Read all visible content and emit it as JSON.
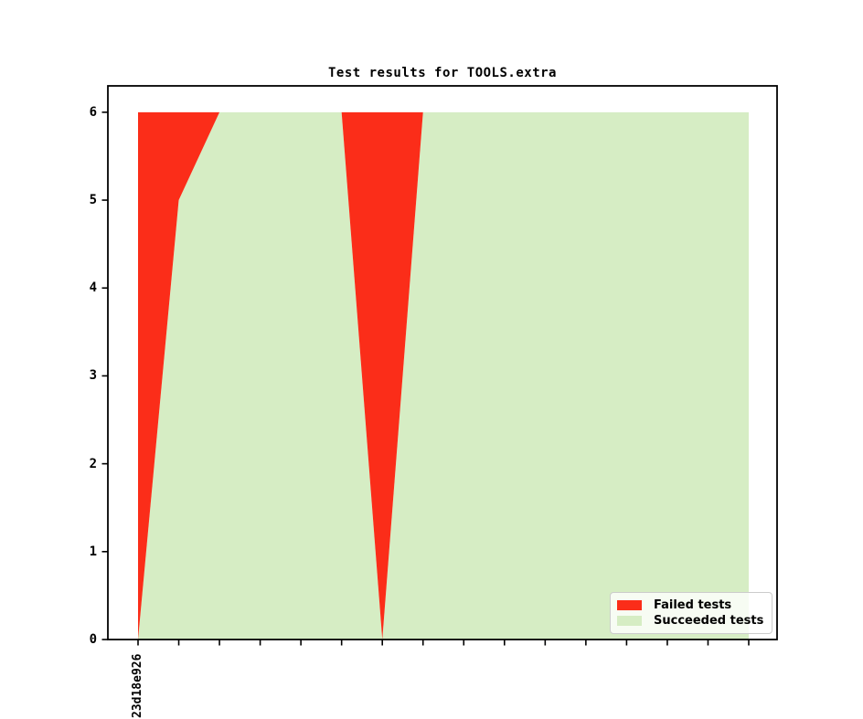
{
  "chart_data": {
    "type": "area",
    "stacked": true,
    "title": "Test results for TOOLS.extra",
    "xlabel": "",
    "ylabel": "",
    "n_points": 16,
    "x_tick_labels": [
      "23d18e926",
      "",
      "",
      "",
      "",
      "",
      "",
      "",
      "",
      "",
      "",
      "",
      "",
      "",
      "",
      ""
    ],
    "series": [
      {
        "name": "Failed tests",
        "color": "#fb2d19",
        "values": [
          6,
          1,
          0,
          0,
          0,
          0,
          6,
          0,
          0,
          0,
          0,
          0,
          0,
          0,
          0,
          0
        ]
      },
      {
        "name": "Succeeded tests",
        "color": "#d6edc4",
        "values": [
          0,
          5,
          6,
          6,
          6,
          6,
          0,
          6,
          6,
          6,
          6,
          6,
          6,
          6,
          6,
          6
        ]
      }
    ],
    "stack_order_bottom_to_top": [
      1,
      0
    ],
    "total_per_point": 6,
    "ylim": [
      0,
      6.3
    ],
    "yticks": [
      0,
      1,
      2,
      3,
      4,
      5,
      6
    ],
    "grid": false,
    "legend_position": "lower right",
    "legend_entries": [
      "Failed tests",
      "Succeeded tests"
    ],
    "spine_color": "#000000",
    "background_color": "#ffffff"
  }
}
